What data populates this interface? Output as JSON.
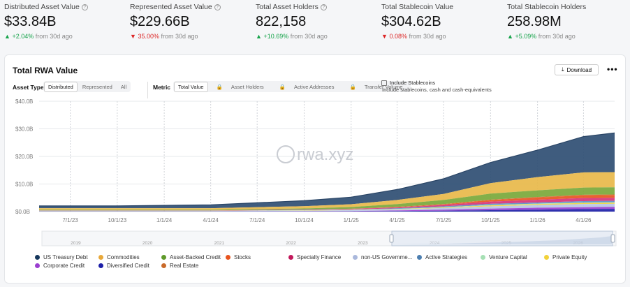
{
  "stats": [
    {
      "label": "Distributed Asset Value",
      "value": "$33.84B",
      "change": "+2.04%",
      "dir": "up",
      "suffix": "from 30d ago",
      "info": true
    },
    {
      "label": "Represented Asset Value",
      "value": "$229.66B",
      "change": "35.00%",
      "dir": "down",
      "suffix": "from 30d ago",
      "info": true
    },
    {
      "label": "Total Asset Holders",
      "value": "822,158",
      "change": "+10.69%",
      "dir": "up",
      "suffix": "from 30d ago",
      "info": true
    },
    {
      "label": "Total Stablecoin Value",
      "value": "$304.62B",
      "change": "0.08%",
      "dir": "down",
      "suffix": "from 30d ago",
      "info": false
    },
    {
      "label": "Total Stablecoin Holders",
      "value": "258.98M",
      "change": "+5.09%",
      "dir": "up",
      "suffix": "from 30d ago",
      "info": false
    }
  ],
  "card": {
    "title": "Total RWA Value",
    "download_label": "Download",
    "more_label": "•••",
    "asset_type_label": "Asset Type",
    "asset_type_options": [
      "Distributed",
      "Represented",
      "All"
    ],
    "metric_label": "Metric",
    "metric_options": [
      "Total Value",
      "Asset Holders",
      "Active Addresses",
      "Transfer Volume"
    ],
    "stablecoin_label": "Include Stablecoins",
    "stablecoin_sub": "Include stablecoins, cash and cash-equivalents"
  },
  "watermark": "rwa.xyz",
  "chart_data": {
    "type": "area",
    "stacked": true,
    "y_ticks": [
      "$0.0B",
      "$10.0B",
      "$20.0B",
      "$30.0B",
      "$40.0B"
    ],
    "ylim": [
      0,
      40
    ],
    "x_ticks": [
      "7/1/23",
      "10/1/23",
      "1/1/24",
      "4/1/24",
      "7/1/24",
      "10/1/24",
      "1/1/25",
      "4/1/25",
      "7/1/25",
      "10/1/25",
      "1/1/26",
      "4/1/26"
    ],
    "x": [
      "5/1/23",
      "7/1/23",
      "10/1/23",
      "1/1/24",
      "4/1/24",
      "7/1/24",
      "10/1/24",
      "1/1/25",
      "4/1/25",
      "7/1/25",
      "10/1/25",
      "1/1/26",
      "4/1/26",
      "6/1/26"
    ],
    "grid": true,
    "series": [
      {
        "name": "Diversified Credit",
        "color": "#1d1fa8",
        "values": [
          0.05,
          0.05,
          0.05,
          0.05,
          0.05,
          0.05,
          0.05,
          0.1,
          0.2,
          0.3,
          0.5,
          0.7,
          0.9,
          1.0
        ]
      },
      {
        "name": "Corporate Credit",
        "color": "#9b3fd0",
        "values": [
          0.05,
          0.05,
          0.05,
          0.05,
          0.05,
          0.05,
          0.1,
          0.1,
          0.2,
          0.4,
          0.6,
          0.7,
          0.7,
          0.7
        ]
      },
      {
        "name": "non-US Government Debt",
        "color": "#b8c6e6",
        "values": [
          0.1,
          0.1,
          0.1,
          0.1,
          0.1,
          0.2,
          0.2,
          0.3,
          0.4,
          0.6,
          0.8,
          1.0,
          1.1,
          1.1
        ]
      },
      {
        "name": "Private Equity",
        "color": "#f2d23a",
        "values": [
          0.05,
          0.05,
          0.05,
          0.05,
          0.05,
          0.05,
          0.1,
          0.1,
          0.1,
          0.2,
          0.3,
          0.3,
          0.4,
          0.4
        ]
      },
      {
        "name": "Venture Capital",
        "color": "#a6e0b4",
        "values": [
          0.05,
          0.05,
          0.05,
          0.05,
          0.05,
          0.05,
          0.05,
          0.05,
          0.1,
          0.1,
          0.2,
          0.2,
          0.2,
          0.2
        ]
      },
      {
        "name": "Active Strategies",
        "color": "#5b8fc4",
        "values": [
          0.05,
          0.05,
          0.05,
          0.05,
          0.05,
          0.05,
          0.1,
          0.1,
          0.2,
          0.3,
          0.4,
          0.4,
          0.5,
          0.5
        ]
      },
      {
        "name": "Specialty Finance",
        "color": "#d6337a",
        "values": [
          0.05,
          0.05,
          0.05,
          0.05,
          0.05,
          0.1,
          0.1,
          0.2,
          0.3,
          0.5,
          0.8,
          1.0,
          1.1,
          1.1
        ]
      },
      {
        "name": "Stocks",
        "color": "#e8541e",
        "values": [
          0.0,
          0.0,
          0.0,
          0.0,
          0.0,
          0.0,
          0.0,
          0.0,
          0.1,
          0.2,
          0.6,
          0.8,
          1.0,
          1.0
        ]
      },
      {
        "name": "Real Estate",
        "color": "#c96a2a",
        "values": [
          0.05,
          0.05,
          0.05,
          0.05,
          0.05,
          0.05,
          0.05,
          0.1,
          0.1,
          0.1,
          0.1,
          0.2,
          0.2,
          0.2
        ]
      },
      {
        "name": "Asset-Backed Credit",
        "color": "#7aa83a",
        "values": [
          0.2,
          0.2,
          0.2,
          0.2,
          0.2,
          0.3,
          0.4,
          0.6,
          1.0,
          1.5,
          2.2,
          2.4,
          2.6,
          2.6
        ]
      },
      {
        "name": "Commodities",
        "color": "#e8b84a",
        "values": [
          0.6,
          0.6,
          0.6,
          0.6,
          0.6,
          0.7,
          0.8,
          1.0,
          1.5,
          2.2,
          3.8,
          4.8,
          5.5,
          5.5
        ]
      },
      {
        "name": "US Treasury Debt",
        "color": "#2f4e73",
        "values": [
          0.8,
          0.8,
          0.8,
          1.0,
          1.2,
          1.6,
          2.0,
          2.6,
          3.8,
          5.5,
          7.5,
          9.8,
          13.0,
          14.2
        ]
      }
    ]
  },
  "navigator": {
    "years": [
      "2019",
      "2020",
      "2021",
      "2022",
      "2023",
      "2024",
      "2025",
      "2026"
    ]
  },
  "legend": [
    {
      "label": "US Treasury Debt",
      "color": "#16375c"
    },
    {
      "label": "Commodities",
      "color": "#e8a83a"
    },
    {
      "label": "Asset-Backed Credit",
      "color": "#5f9a2a"
    },
    {
      "label": "Stocks",
      "color": "#e8541e"
    },
    {
      "label": "Specialty Finance",
      "color": "#c2185b"
    },
    {
      "label": "non-US Governme...",
      "color": "#aab8dc"
    },
    {
      "label": "Active Strategies",
      "color": "#4d7fb0"
    },
    {
      "label": "Venture Capital",
      "color": "#a6e0b4"
    },
    {
      "label": "Private Equity",
      "color": "#f2d23a"
    },
    {
      "label": "Corporate Credit",
      "color": "#9b3fd0"
    },
    {
      "label": "Diversified Credit",
      "color": "#1d1fa8"
    },
    {
      "label": "Real Estate",
      "color": "#c96a2a"
    }
  ]
}
